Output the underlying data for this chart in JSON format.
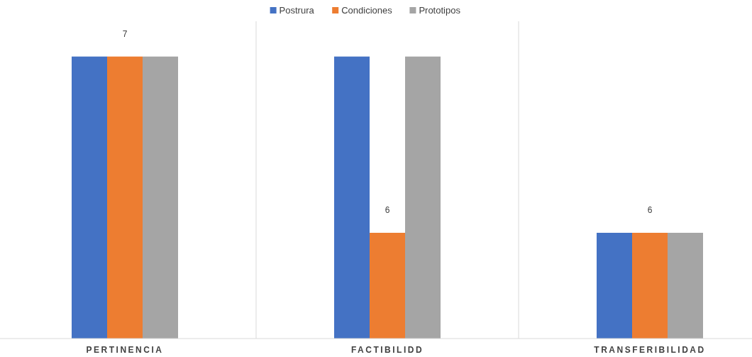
{
  "chart_data": {
    "type": "bar",
    "categories": [
      "PERTINENCIA",
      "FACTIBILIDD",
      "TRANSFERIBILIDAD"
    ],
    "series": [
      {
        "name": "Postrura",
        "color": "#4472c4",
        "values": [
          7,
          7,
          6
        ]
      },
      {
        "name": "Condiciones",
        "color": "#ed7d31",
        "values": [
          7,
          6,
          6
        ],
        "value_labels": [
          "7",
          "6",
          "6"
        ]
      },
      {
        "name": "Prototipos",
        "color": "#a5a5a5",
        "values": [
          7,
          7,
          6
        ]
      }
    ],
    "ylim": [
      5.4,
      7.2
    ],
    "tick_labels": "x",
    "grid": "x",
    "legend": "top"
  }
}
